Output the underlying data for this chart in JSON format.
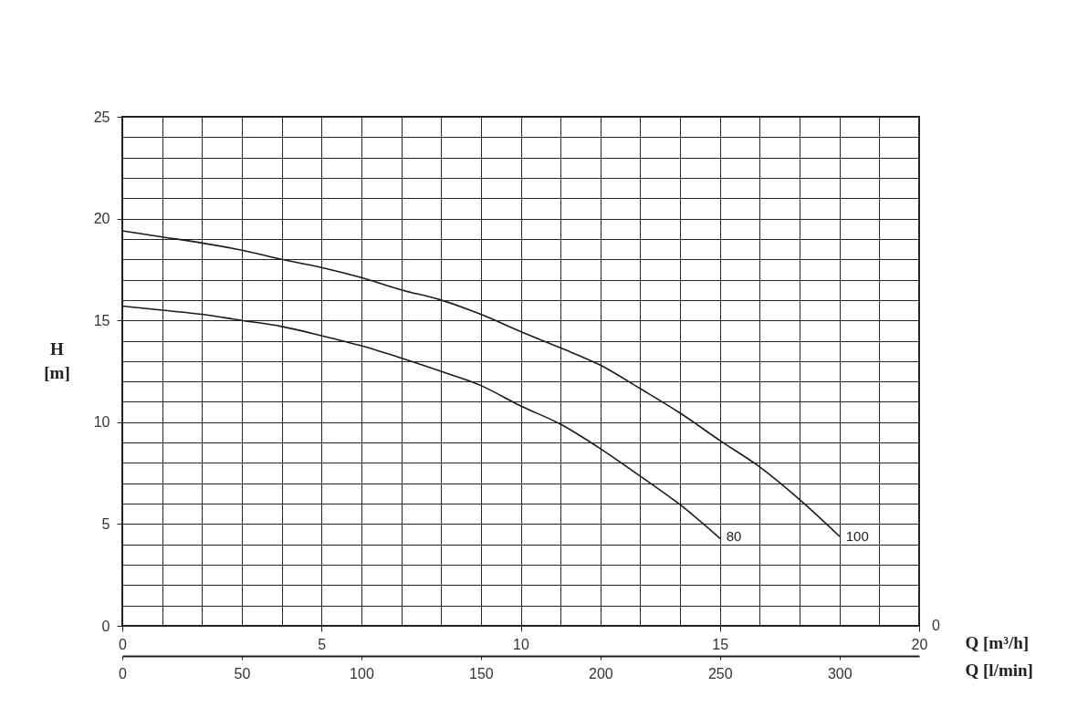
{
  "chart_data": {
    "type": "line",
    "xlabel": "Q [m³/h]",
    "ylabel": "H [m]",
    "x2label": "Q [l/min]",
    "xlim": [
      0,
      20
    ],
    "xticks": [
      0,
      {
        "value": 1,
        "label": null
      },
      {
        "value": 2,
        "label": null
      },
      {
        "value": 3,
        "label": null
      },
      {
        "value": 4,
        "label": null
      },
      5,
      {
        "value": 6,
        "label": null
      },
      {
        "value": 7,
        "label": null
      },
      {
        "value": 8,
        "label": null
      },
      {
        "value": 9,
        "label": null
      },
      10,
      {
        "value": 11,
        "label": null
      },
      {
        "value": 12,
        "label": null
      },
      {
        "value": 13,
        "label": null
      },
      {
        "value": 14,
        "label": null
      },
      15,
      {
        "value": 16,
        "label": null
      },
      {
        "value": 17,
        "label": null
      },
      {
        "value": 18,
        "label": null
      },
      {
        "value": 19,
        "label": null
      },
      20
    ],
    "ylim": [
      0,
      25
    ],
    "yticks": [
      0,
      {
        "value": 1,
        "label": null
      },
      {
        "value": 2,
        "label": null
      },
      {
        "value": 3,
        "label": null
      },
      {
        "value": 4,
        "label": null
      },
      5,
      {
        "value": 6,
        "label": null
      },
      {
        "value": 7,
        "label": null
      },
      {
        "value": 8,
        "label": null
      },
      {
        "value": 9,
        "label": null
      },
      10,
      {
        "value": 11,
        "label": null
      },
      {
        "value": 12,
        "label": null
      },
      {
        "value": 13,
        "label": null
      },
      {
        "value": 14,
        "label": null
      },
      15,
      {
        "value": 16,
        "label": null
      },
      {
        "value": 17,
        "label": null
      },
      {
        "value": 18,
        "label": null
      },
      {
        "value": 19,
        "label": null
      },
      20,
      {
        "value": 21,
        "label": null
      },
      {
        "value": 22,
        "label": null
      },
      {
        "value": 23,
        "label": null
      },
      {
        "value": 24,
        "label": null
      },
      25
    ],
    "x2lim": [
      0,
      333.3
    ],
    "x2ticks": [
      0,
      50,
      100,
      150,
      200,
      250,
      300
    ],
    "grid": true,
    "annotations": [
      "0"
    ],
    "series": [
      {
        "name": "80",
        "color": "#1a1a1a",
        "x": [
          0,
          1,
          2,
          3,
          4,
          5,
          6,
          7,
          8,
          9,
          10,
          11,
          12,
          13,
          14,
          15
        ],
        "values": [
          15.7,
          15.5,
          15.3,
          15.0,
          14.7,
          14.25,
          13.75,
          13.15,
          12.5,
          11.8,
          10.8,
          9.9,
          8.7,
          7.35,
          5.95,
          4.3
        ]
      },
      {
        "name": "100",
        "color": "#1a1a1a",
        "x": [
          0,
          1,
          2,
          3,
          4,
          5,
          6,
          7,
          8,
          9,
          10,
          11,
          12,
          13,
          14,
          15,
          16,
          17,
          18
        ],
        "values": [
          19.4,
          19.1,
          18.8,
          18.45,
          18.0,
          17.6,
          17.1,
          16.5,
          16.0,
          15.3,
          14.45,
          13.65,
          12.8,
          11.65,
          10.45,
          9.1,
          7.8,
          6.2,
          4.4
        ]
      }
    ]
  }
}
